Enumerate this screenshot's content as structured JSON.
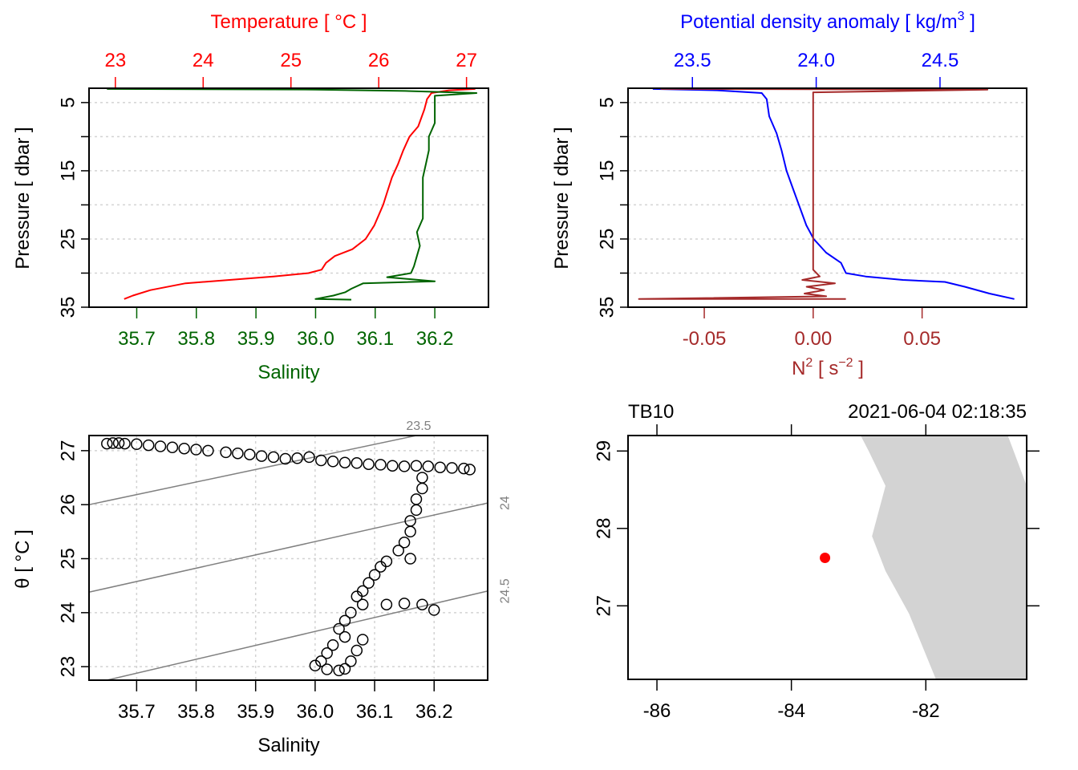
{
  "colors": {
    "temperature": "#ff0000",
    "salinity": "#006400",
    "density": "#0000ff",
    "n2": "#a52a2a",
    "grid": "#d3d3d3",
    "isopycnal": "#808080",
    "land": "#d3d3d3",
    "station": "#ff0000",
    "axis": "#000000"
  },
  "chart_data": [
    {
      "id": "profile-TS",
      "type": "line",
      "title": "Temperature [ °C ]",
      "xlabel_top": "Temperature [ °C ]",
      "xlabel_bottom": "Salinity",
      "ylabel": "Pressure [ dbar ]",
      "ylim": [
        35,
        2.9
      ],
      "yticks": [
        5,
        15,
        25,
        35
      ],
      "ygrid": [
        5,
        10,
        15,
        20,
        25,
        30,
        35
      ],
      "top_axis": {
        "range": [
          22.7,
          27.25
        ],
        "ticks": [
          23,
          24,
          25,
          26,
          27
        ],
        "tick_labels": [
          "23",
          "24",
          "25",
          "26",
          "27"
        ]
      },
      "bottom_axis": {
        "range": [
          35.62,
          36.29
        ],
        "ticks": [
          35.7,
          35.8,
          35.9,
          36.0,
          36.1,
          36.2
        ],
        "tick_labels": [
          "35.7",
          "35.8",
          "35.9",
          "36.0",
          "36.1",
          "36.2"
        ]
      },
      "series": [
        {
          "name": "Temperature",
          "axis": "top",
          "points": [
            [
              27.1,
              3.0
            ],
            [
              26.8,
              3.2
            ],
            [
              26.6,
              3.6
            ],
            [
              26.55,
              4.5
            ],
            [
              26.52,
              6.0
            ],
            [
              26.45,
              8.5
            ],
            [
              26.35,
              10.0
            ],
            [
              26.28,
              12.0
            ],
            [
              26.22,
              14.0
            ],
            [
              26.15,
              16.0
            ],
            [
              26.1,
              18.0
            ],
            [
              26.05,
              20.0
            ],
            [
              26.0,
              21.5
            ],
            [
              25.95,
              23.0
            ],
            [
              25.85,
              25.0
            ],
            [
              25.7,
              26.5
            ],
            [
              25.5,
              27.5
            ],
            [
              25.4,
              28.5
            ],
            [
              25.35,
              29.5
            ],
            [
              25.2,
              30.0
            ],
            [
              24.8,
              30.5
            ],
            [
              24.3,
              31.0
            ],
            [
              23.8,
              31.5
            ],
            [
              23.4,
              32.5
            ],
            [
              23.2,
              33.3
            ],
            [
              23.1,
              33.8
            ]
          ]
        },
        {
          "name": "Salinity",
          "axis": "bottom",
          "points": [
            [
              35.65,
              3.0
            ],
            [
              36.0,
              3.1
            ],
            [
              36.15,
              3.3
            ],
            [
              36.27,
              3.6
            ],
            [
              36.2,
              4.0
            ],
            [
              36.2,
              6.0
            ],
            [
              36.2,
              8.0
            ],
            [
              36.19,
              10.0
            ],
            [
              36.19,
              12.0
            ],
            [
              36.185,
              14.0
            ],
            [
              36.18,
              16.0
            ],
            [
              36.18,
              18.0
            ],
            [
              36.18,
              20.0
            ],
            [
              36.18,
              22.0
            ],
            [
              36.17,
              24.0
            ],
            [
              36.175,
              26.0
            ],
            [
              36.17,
              27.5
            ],
            [
              36.165,
              29.0
            ],
            [
              36.16,
              30.0
            ],
            [
              36.12,
              30.6
            ],
            [
              36.2,
              31.2
            ],
            [
              36.08,
              31.5
            ],
            [
              36.06,
              32.3
            ],
            [
              36.05,
              32.8
            ],
            [
              36.03,
              33.3
            ],
            [
              36.0,
              33.8
            ],
            [
              36.06,
              33.9
            ]
          ]
        }
      ]
    },
    {
      "id": "profile-density-N2",
      "type": "line",
      "xlabel_top": "Potential density anomaly [ kg/m3 ]",
      "xlabel_bottom": "N2 [ s-2 ]",
      "ylabel": "Pressure [ dbar ]",
      "ylim": [
        35,
        2.9
      ],
      "yticks": [
        5,
        15,
        25,
        35
      ],
      "ygrid": [
        5,
        10,
        15,
        20,
        25,
        30,
        35
      ],
      "top_axis": {
        "range": [
          23.24,
          24.85
        ],
        "ticks": [
          23.5,
          24.0,
          24.5
        ],
        "tick_labels": [
          "23.5",
          "24.0",
          "24.5"
        ]
      },
      "bottom_axis": {
        "range": [
          -0.085,
          0.098
        ],
        "ticks": [
          -0.05,
          0.0,
          0.05
        ],
        "tick_labels": [
          "-0.05",
          "0.00",
          "0.05"
        ]
      },
      "series": [
        {
          "name": "Potential density anomaly",
          "axis": "top",
          "points": [
            [
              23.34,
              3.0
            ],
            [
              23.6,
              3.2
            ],
            [
              23.78,
              3.6
            ],
            [
              23.8,
              4.5
            ],
            [
              23.81,
              7.0
            ],
            [
              23.84,
              9.5
            ],
            [
              23.86,
              12.0
            ],
            [
              23.88,
              15.0
            ],
            [
              23.91,
              18.0
            ],
            [
              23.94,
              21.0
            ],
            [
              23.96,
              23.0
            ],
            [
              23.99,
              25.0
            ],
            [
              24.04,
              27.0
            ],
            [
              24.1,
              28.5
            ],
            [
              24.12,
              30.0
            ],
            [
              24.2,
              30.5
            ],
            [
              24.35,
              31.0
            ],
            [
              24.52,
              31.3
            ],
            [
              24.6,
              32.0
            ],
            [
              24.7,
              33.0
            ],
            [
              24.8,
              33.8
            ]
          ]
        },
        {
          "name": "N2",
          "axis": "bottom",
          "points": [
            [
              -0.07,
              3.0
            ],
            [
              0.08,
              3.1
            ],
            [
              0.0,
              3.5
            ],
            [
              0.0,
              10.0
            ],
            [
              0.0,
              20.0
            ],
            [
              0.0,
              29.5
            ],
            [
              0.003,
              30.5
            ],
            [
              -0.005,
              31.0
            ],
            [
              0.01,
              31.5
            ],
            [
              -0.003,
              32.0
            ],
            [
              0.005,
              32.5
            ],
            [
              -0.004,
              33.0
            ],
            [
              0.006,
              33.4
            ],
            [
              -0.08,
              33.8
            ],
            [
              0.015,
              33.8
            ]
          ]
        }
      ]
    },
    {
      "id": "ts-diagram",
      "type": "scatter",
      "xlabel": "Salinity",
      "ylabel": "θ [ °C ]",
      "xlim": [
        35.62,
        36.29
      ],
      "ylim": [
        22.75,
        27.28
      ],
      "xticks": [
        35.7,
        35.8,
        35.9,
        36.0,
        36.1,
        36.2
      ],
      "xtick_labels": [
        "35.7",
        "35.8",
        "35.9",
        "36.0",
        "36.1",
        "36.2"
      ],
      "yticks": [
        23,
        24,
        25,
        26,
        27
      ],
      "ytick_labels": [
        "23",
        "24",
        "25",
        "26",
        "27"
      ],
      "isopycnals": [
        {
          "label": "23.5",
          "points": [
            [
              35.62,
              26.0
            ],
            [
              36.17,
              27.28
            ]
          ]
        },
        {
          "label": "24",
          "points": [
            [
              35.62,
              24.38
            ],
            [
              36.29,
              26.03
            ]
          ]
        },
        {
          "label": "24.5",
          "points": [
            [
              35.65,
              22.75
            ],
            [
              36.29,
              24.4
            ]
          ]
        }
      ],
      "points": [
        [
          35.65,
          27.13
        ],
        [
          35.66,
          27.14
        ],
        [
          35.67,
          27.14
        ],
        [
          35.68,
          27.13
        ],
        [
          35.7,
          27.12
        ],
        [
          35.72,
          27.1
        ],
        [
          35.74,
          27.08
        ],
        [
          35.76,
          27.06
        ],
        [
          35.78,
          27.04
        ],
        [
          35.8,
          27.02
        ],
        [
          35.82,
          27.0
        ],
        [
          35.85,
          26.97
        ],
        [
          35.87,
          26.95
        ],
        [
          35.89,
          26.93
        ],
        [
          35.91,
          26.9
        ],
        [
          35.93,
          26.88
        ],
        [
          35.95,
          26.85
        ],
        [
          35.97,
          26.86
        ],
        [
          35.99,
          26.88
        ],
        [
          36.01,
          26.82
        ],
        [
          36.03,
          26.8
        ],
        [
          36.05,
          26.78
        ],
        [
          36.07,
          26.77
        ],
        [
          36.09,
          26.75
        ],
        [
          36.11,
          26.74
        ],
        [
          36.13,
          26.72
        ],
        [
          36.15,
          26.71
        ],
        [
          36.17,
          26.72
        ],
        [
          36.19,
          26.71
        ],
        [
          36.21,
          26.69
        ],
        [
          36.23,
          26.68
        ],
        [
          36.25,
          26.67
        ],
        [
          36.26,
          26.65
        ],
        [
          36.18,
          26.5
        ],
        [
          36.18,
          26.3
        ],
        [
          36.17,
          26.1
        ],
        [
          36.17,
          25.9
        ],
        [
          36.16,
          25.7
        ],
        [
          36.16,
          25.5
        ],
        [
          36.15,
          25.3
        ],
        [
          36.14,
          25.15
        ],
        [
          36.16,
          25.0
        ],
        [
          36.12,
          24.95
        ],
        [
          36.11,
          24.85
        ],
        [
          36.1,
          24.7
        ],
        [
          36.09,
          24.55
        ],
        [
          36.08,
          24.4
        ],
        [
          36.07,
          24.3
        ],
        [
          36.08,
          24.15
        ],
        [
          36.12,
          24.15
        ],
        [
          36.15,
          24.17
        ],
        [
          36.18,
          24.15
        ],
        [
          36.2,
          24.05
        ],
        [
          36.06,
          24.0
        ],
        [
          36.05,
          23.85
        ],
        [
          36.04,
          23.7
        ],
        [
          36.05,
          23.55
        ],
        [
          36.03,
          23.4
        ],
        [
          36.02,
          23.25
        ],
        [
          36.01,
          23.1
        ],
        [
          36.0,
          23.02
        ],
        [
          36.02,
          22.95
        ],
        [
          36.04,
          22.93
        ],
        [
          36.05,
          22.96
        ],
        [
          36.06,
          23.1
        ],
        [
          36.07,
          23.3
        ],
        [
          36.08,
          23.5
        ]
      ]
    },
    {
      "id": "station-map",
      "type": "scatter",
      "title_left": "TB10",
      "title_right": "2021-06-04 02:18:35",
      "xlim": [
        -86.43,
        -80.5
      ],
      "ylim": [
        26.05,
        29.2
      ],
      "xticks": [
        -86,
        -84,
        -82
      ],
      "xtick_labels": [
        "-86",
        "-84",
        "-82"
      ],
      "yticks": [
        27,
        28,
        29
      ],
      "ytick_labels": [
        "27",
        "28",
        "29"
      ],
      "station": {
        "lon": -83.5,
        "lat": 27.62
      },
      "land_polygon": [
        [
          -82.97,
          29.2
        ],
        [
          -82.85,
          29.0
        ],
        [
          -82.6,
          28.55
        ],
        [
          -82.8,
          27.9
        ],
        [
          -82.6,
          27.45
        ],
        [
          -82.25,
          26.9
        ],
        [
          -81.85,
          26.05
        ],
        [
          -80.5,
          26.05
        ],
        [
          -80.5,
          28.55
        ],
        [
          -80.78,
          29.2
        ]
      ]
    }
  ]
}
